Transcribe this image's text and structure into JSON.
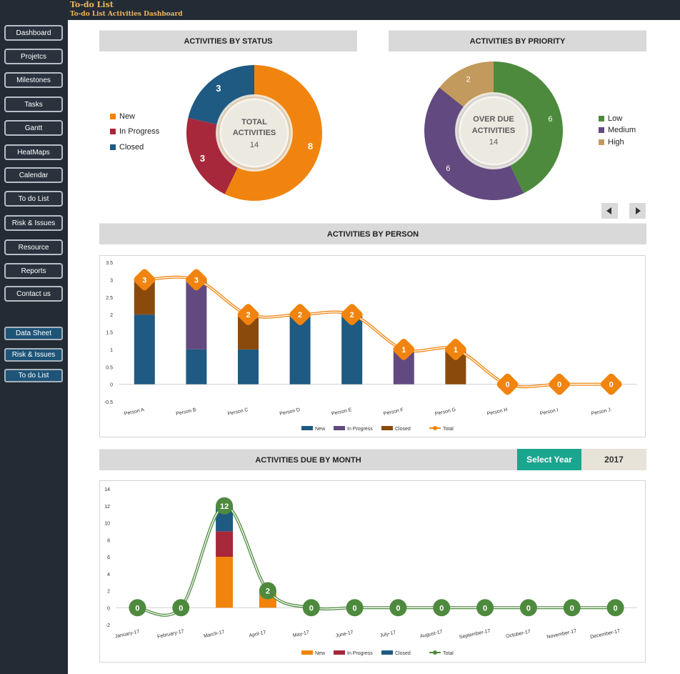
{
  "header": {
    "title": "To-do List",
    "subtitle": "To-do List Activities Dashboard"
  },
  "sidebar": {
    "nav": [
      "Dashboard",
      "Projetcs",
      "Milestones",
      "Tasks",
      "Gantt",
      "HeatMaps",
      "Calendar",
      "To do List",
      "Risk & Issues",
      "Resource",
      "Reports",
      "Contact us"
    ],
    "sheets": [
      "Data Sheet",
      "Risk & Issues",
      "To do List"
    ]
  },
  "status_section": {
    "title": "ACTIVITIES BY STATUS",
    "center_label_1": "TOTAL",
    "center_label_2": "ACTIVITIES",
    "center_value": "14",
    "legend": [
      "New",
      "In Progress",
      "Closed"
    ],
    "colors": [
      "#f0840e",
      "#a6283a",
      "#1e5a82"
    ]
  },
  "priority_section": {
    "title": "ACTIVITIES BY PRIORITY",
    "center_label_1": "OVER DUE",
    "center_label_2": "ACTIVITIES",
    "center_value": "14",
    "legend": [
      "Low",
      "Medium",
      "High"
    ],
    "colors": [
      "#4e8a3e",
      "#624a80",
      "#c39a5d"
    ]
  },
  "person_section": {
    "title": "ACTIVITIES BY PERSON"
  },
  "month_section": {
    "title": "ACTIVITIES DUE BY MONTH",
    "select_year_label": "Select Year",
    "year": "2017"
  },
  "icons": {
    "prev": "triangle-left-icon",
    "next": "triangle-right-icon"
  },
  "chart_data": [
    {
      "type": "pie",
      "title": "ACTIVITIES BY STATUS",
      "categories": [
        "New",
        "In Progress",
        "Closed"
      ],
      "values": [
        8,
        3,
        3
      ],
      "colors": [
        "#f0840e",
        "#a6283a",
        "#1e5a82"
      ]
    },
    {
      "type": "pie",
      "title": "ACTIVITIES BY PRIORITY",
      "categories": [
        "Low",
        "Medium",
        "High"
      ],
      "values": [
        6,
        6,
        2
      ],
      "colors": [
        "#4e8a3e",
        "#624a80",
        "#c39a5d"
      ]
    },
    {
      "type": "bar",
      "title": "ACTIVITIES BY PERSON",
      "stacked": true,
      "categories": [
        "Person A",
        "Person B",
        "Person C",
        "Person D",
        "Person E",
        "Person F",
        "Person G",
        "Person H",
        "Person I",
        "Person J"
      ],
      "series": [
        {
          "name": "New",
          "values": [
            2,
            1,
            1,
            2,
            2,
            0,
            0,
            0,
            0,
            0
          ],
          "color": "#1e5a82"
        },
        {
          "name": "In Progress",
          "values": [
            0,
            2,
            0,
            0,
            0,
            1,
            0,
            0,
            0,
            0
          ],
          "color": "#624a80"
        },
        {
          "name": "Closed",
          "values": [
            1,
            0,
            1,
            0,
            0,
            0,
            1,
            0,
            0,
            0
          ],
          "color": "#8a4a0c"
        },
        {
          "name": "Total",
          "type": "line",
          "values": [
            3,
            3,
            2,
            2,
            2,
            1,
            1,
            0,
            0,
            0
          ],
          "color": "#f0840e"
        }
      ],
      "yticks": [
        "3.5",
        "3",
        "2.5",
        "2",
        "1.5",
        "1",
        "0.5",
        "0",
        "-0.5"
      ],
      "ylim": [
        -0.5,
        3.5
      ],
      "legend_position": "bottom"
    },
    {
      "type": "bar",
      "title": "ACTIVITIES DUE BY MONTH",
      "stacked": true,
      "categories": [
        "January-17",
        "February-17",
        "March-17",
        "April-17",
        "May-17",
        "June-17",
        "July-17",
        "August-17",
        "September-17",
        "October-17",
        "November-17",
        "December-17"
      ],
      "series": [
        {
          "name": "New",
          "values": [
            0,
            0,
            6,
            2,
            0,
            0,
            0,
            0,
            0,
            0,
            0,
            0
          ],
          "color": "#f0840e"
        },
        {
          "name": "In Progress",
          "values": [
            0,
            0,
            3,
            0,
            0,
            0,
            0,
            0,
            0,
            0,
            0,
            0
          ],
          "color": "#a6283a"
        },
        {
          "name": "Closed",
          "values": [
            0,
            0,
            3,
            0,
            0,
            0,
            0,
            0,
            0,
            0,
            0,
            0
          ],
          "color": "#1e5a82"
        },
        {
          "name": "Total",
          "type": "line",
          "values": [
            0,
            0,
            12,
            2,
            0,
            0,
            0,
            0,
            0,
            0,
            0,
            0
          ],
          "color": "#4e8a3e"
        }
      ],
      "yticks": [
        "14",
        "12",
        "10",
        "8",
        "6",
        "4",
        "2",
        "0",
        "-2"
      ],
      "ylim": [
        -2,
        14
      ],
      "legend_position": "bottom"
    }
  ]
}
